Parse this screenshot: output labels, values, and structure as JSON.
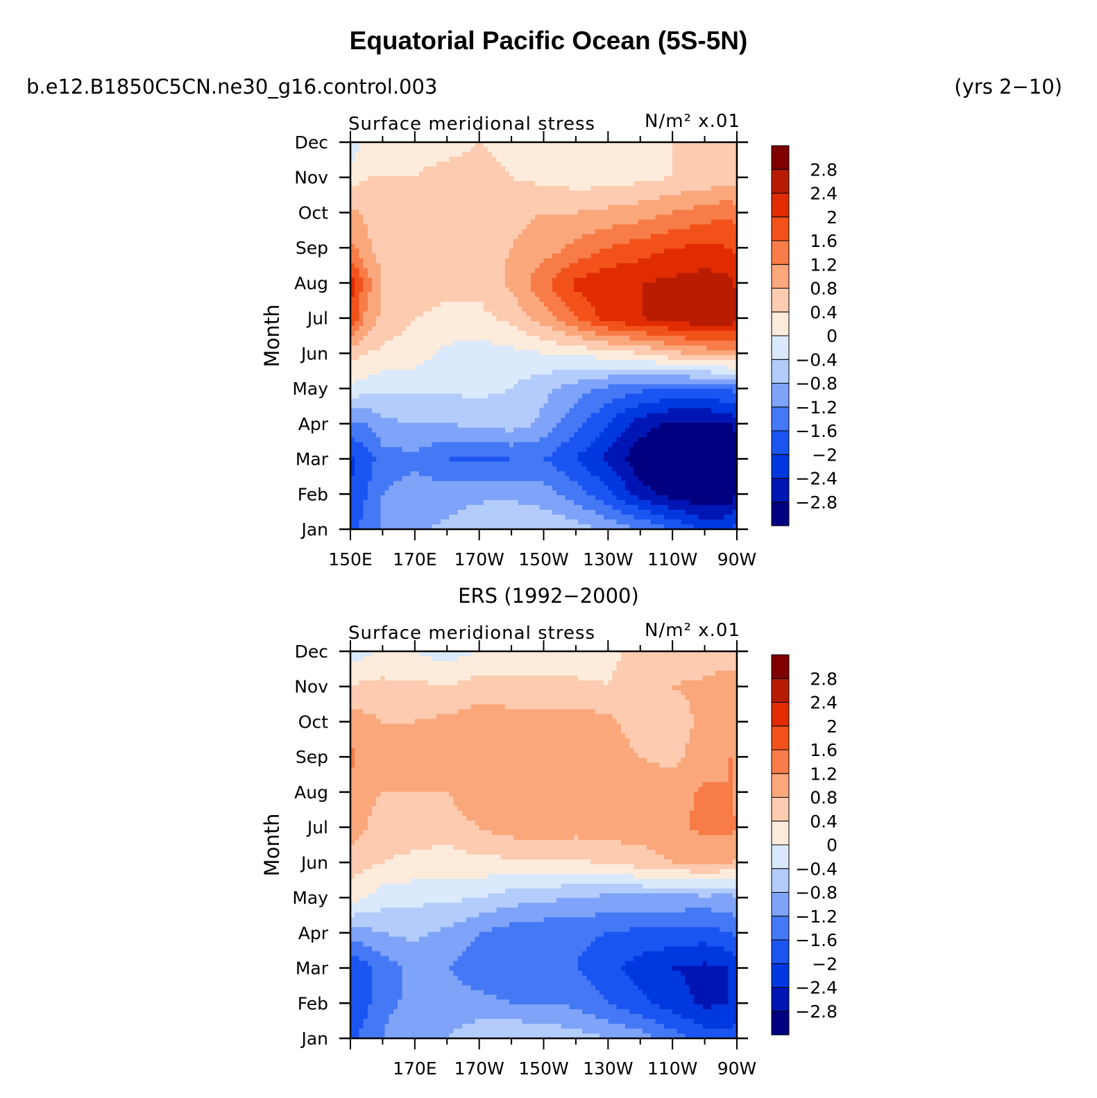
{
  "figure": {
    "title": "Equatorial Pacific Ocean (5S-5N)",
    "case_name": "b.e12.B1850C5CN.ne30_g16.control.003",
    "years": "(yrs 2−10)",
    "subtitle": "ERS (1992−2000)"
  },
  "palette": [
    "#000080",
    "#0016b4",
    "#0038e0",
    "#1a55f2",
    "#4478f5",
    "#7ea3f8",
    "#b3ccfb",
    "#dbe9fd",
    "#fdebdb",
    "#fccbb0",
    "#faa77c",
    "#f77c48",
    "#f2521a",
    "#e02c00",
    "#b81c00",
    "#800000"
  ],
  "chart_data": [
    {
      "type": "heatmap",
      "panel": "model",
      "title": "Surface meridional stress",
      "units": "N/m² x.01",
      "ylabel": "Month",
      "x_ticks": [
        "150E",
        "170E",
        "170W",
        "150W",
        "130W",
        "110W",
        "90W"
      ],
      "x_tick_lon": [
        150,
        170,
        190,
        210,
        230,
        250,
        270
      ],
      "y_ticks": [
        "Jan",
        "Feb",
        "Mar",
        "Apr",
        "May",
        "Jun",
        "Jul",
        "Aug",
        "Sep",
        "Oct",
        "Nov",
        "Dec"
      ],
      "xlim": [
        150,
        270
      ],
      "ylim": [
        1,
        12
      ],
      "contour_levels": [
        "−2.8",
        "−2.4",
        "−2",
        "−1.6",
        "−1.2",
        "−0.8",
        "−0.4",
        "0",
        "0.4",
        "0.8",
        "1.2",
        "1.6",
        "2",
        "2.4",
        "2.8"
      ],
      "lon": [
        150,
        155,
        160,
        170,
        180,
        190,
        200,
        210,
        220,
        230,
        240,
        250,
        260,
        268,
        270
      ],
      "values": [
        [
          -1.8,
          -1.4,
          -1.2,
          -0.9,
          -0.7,
          -0.5,
          -0.4,
          -0.5,
          -0.6,
          -0.9,
          -1.2,
          -1.6,
          -2.1,
          -2.0,
          -1.8
        ],
        [
          -2.0,
          -1.6,
          -1.2,
          -1.0,
          -1.0,
          -0.9,
          -0.9,
          -1.0,
          -1.4,
          -1.9,
          -2.6,
          -3.0,
          -3.2,
          -3.1,
          -2.8
        ],
        [
          -2.1,
          -1.8,
          -1.4,
          -1.3,
          -1.6,
          -1.7,
          -1.6,
          -1.6,
          -2.0,
          -2.5,
          -3.1,
          -3.4,
          -3.5,
          -3.4,
          -3.0
        ],
        [
          -1.3,
          -1.2,
          -0.9,
          -0.8,
          -0.8,
          -0.7,
          -0.6,
          -0.9,
          -1.5,
          -2.0,
          -2.6,
          -2.9,
          -2.9,
          -2.8,
          -2.6
        ],
        [
          -0.1,
          -0.2,
          -0.3,
          -0.3,
          -0.3,
          -0.3,
          -0.4,
          -0.7,
          -1.0,
          -1.3,
          -1.5,
          -1.6,
          -1.6,
          -1.5,
          -1.4
        ],
        [
          0.6,
          0.4,
          0.3,
          0.2,
          -0.1,
          -0.2,
          -0.1,
          0.0,
          0.1,
          0.2,
          0.4,
          0.7,
          0.9,
          1.0,
          1.0
        ],
        [
          2.0,
          1.1,
          0.7,
          0.4,
          0.3,
          0.3,
          0.5,
          1.0,
          1.6,
          2.2,
          2.4,
          2.6,
          2.8,
          2.7,
          2.5
        ],
        [
          2.2,
          1.4,
          0.8,
          0.6,
          0.5,
          0.5,
          0.9,
          1.5,
          2.1,
          2.3,
          2.4,
          2.5,
          2.6,
          2.5,
          2.3
        ],
        [
          1.3,
          0.9,
          0.6,
          0.5,
          0.5,
          0.6,
          0.8,
          1.0,
          1.3,
          1.6,
          1.8,
          2.0,
          2.1,
          2.0,
          1.9
        ],
        [
          0.9,
          0.7,
          0.5,
          0.5,
          0.5,
          0.6,
          0.7,
          0.8,
          0.8,
          0.9,
          1.0,
          1.2,
          1.4,
          1.5,
          1.4
        ],
        [
          0.2,
          0.4,
          0.4,
          0.4,
          0.5,
          0.5,
          0.4,
          0.3,
          0.2,
          0.2,
          0.3,
          0.4,
          0.5,
          0.6,
          0.6
        ],
        [
          -0.3,
          0.2,
          0.3,
          0.3,
          0.3,
          0.4,
          0.3,
          0.2,
          0.1,
          0.1,
          0.2,
          0.4,
          0.4,
          0.5,
          0.5
        ]
      ]
    },
    {
      "type": "heatmap",
      "panel": "observations",
      "title": "Surface meridional stress",
      "units": "N/m² x.01",
      "ylabel": "Month",
      "x_ticks": [
        "170E",
        "170W",
        "150W",
        "130W",
        "110W",
        "90W"
      ],
      "x_tick_lon": [
        170,
        190,
        210,
        230,
        250,
        270
      ],
      "y_ticks": [
        "Jan",
        "Feb",
        "Mar",
        "Apr",
        "May",
        "Jun",
        "Jul",
        "Aug",
        "Sep",
        "Oct",
        "Nov",
        "Dec"
      ],
      "xlim": [
        150,
        270
      ],
      "ylim": [
        1,
        12
      ],
      "contour_levels": [
        "−2.8",
        "−2.4",
        "−2",
        "−1.6",
        "−1.2",
        "−0.8",
        "−0.4",
        "0",
        "0.4",
        "0.8",
        "1.2",
        "1.6",
        "2",
        "2.4",
        "2.8"
      ],
      "lon": [
        150,
        155,
        160,
        170,
        180,
        190,
        200,
        210,
        220,
        230,
        240,
        250,
        260,
        268,
        270
      ],
      "values": [
        [
          -1.7,
          -1.4,
          -1.2,
          -0.9,
          -0.8,
          -0.5,
          -0.4,
          -0.5,
          -0.6,
          -0.8,
          -1.0,
          -1.4,
          -1.8,
          -1.8,
          -1.7
        ],
        [
          -2.0,
          -1.7,
          -1.3,
          -1.1,
          -1.0,
          -1.1,
          -1.2,
          -1.2,
          -1.3,
          -1.6,
          -1.9,
          -2.2,
          -2.5,
          -2.4,
          -2.3
        ],
        [
          -2.0,
          -1.7,
          -1.4,
          -1.1,
          -1.2,
          -1.4,
          -1.5,
          -1.5,
          -1.6,
          -1.9,
          -2.2,
          -2.4,
          -2.5,
          -2.4,
          -2.2
        ],
        [
          -1.0,
          -0.9,
          -0.8,
          -0.7,
          -0.9,
          -1.2,
          -1.4,
          -1.5,
          -1.5,
          -1.6,
          -1.7,
          -1.7,
          -1.8,
          -1.6,
          -1.5
        ],
        [
          0.2,
          0.0,
          -0.2,
          -0.3,
          -0.3,
          -0.4,
          -0.6,
          -0.7,
          -0.8,
          -0.9,
          -0.9,
          -0.9,
          -0.9,
          -0.9,
          -0.8
        ],
        [
          0.6,
          0.5,
          0.4,
          0.3,
          0.2,
          0.3,
          0.3,
          0.3,
          0.3,
          0.5,
          0.6,
          0.8,
          0.9,
          0.8,
          0.7
        ],
        [
          1.0,
          0.8,
          0.6,
          0.6,
          0.6,
          0.8,
          1.0,
          1.1,
          1.0,
          1.0,
          1.0,
          1.1,
          1.3,
          1.3,
          1.2
        ],
        [
          1.1,
          0.9,
          0.8,
          0.8,
          0.8,
          1.1,
          1.1,
          1.1,
          1.0,
          1.0,
          1.0,
          1.0,
          1.3,
          1.2,
          1.1
        ],
        [
          1.3,
          1.0,
          0.8,
          0.8,
          1.0,
          1.1,
          1.0,
          1.0,
          1.0,
          1.0,
          0.8,
          0.7,
          1.0,
          1.2,
          1.1
        ],
        [
          1.0,
          0.9,
          0.8,
          0.8,
          0.9,
          1.0,
          1.0,
          1.0,
          1.0,
          0.9,
          0.6,
          0.6,
          0.9,
          1.1,
          1.0
        ],
        [
          0.4,
          0.5,
          0.5,
          0.5,
          0.4,
          0.6,
          0.5,
          0.5,
          0.5,
          0.4,
          0.6,
          0.8,
          0.9,
          1.1,
          1.0
        ],
        [
          -0.2,
          -0.1,
          0.1,
          0.0,
          -0.2,
          0.0,
          0.2,
          0.2,
          0.1,
          0.3,
          0.5,
          0.6,
          0.5,
          0.5,
          0.5
        ]
      ]
    }
  ]
}
